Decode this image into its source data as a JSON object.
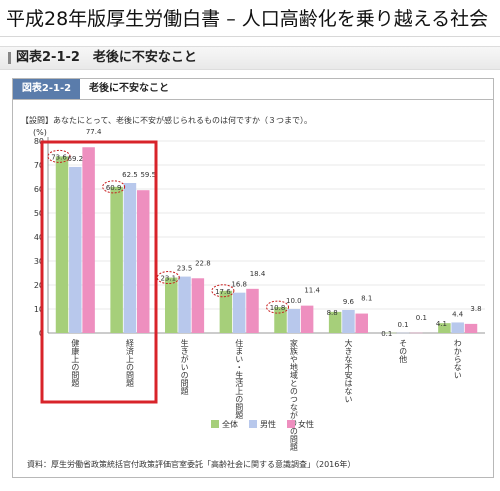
{
  "page_title": "平成28年版厚生労働白書 – 人口高齢化を乗り越える社会",
  "section_heading": "図表2-1-2　老後に不安なこと",
  "figure": {
    "badge": "図表2-1-2",
    "title": "老後に不安なこと",
    "question": "【設問】あなたにとって、老後に不安が感じられるものは何ですか（３つまで）。",
    "source": "資料：厚生労働省政策統括官付政策評価官室委託「高齢社会に関する意識調査」（2016年）"
  },
  "chart_data": {
    "type": "bar",
    "ylabel": "(%)",
    "ylim": [
      0,
      80
    ],
    "yticks": [
      "0",
      "10",
      "20",
      "30",
      "40",
      "50",
      "60",
      "70",
      "80"
    ],
    "categories": [
      "健康上の問題",
      "経済上の問題",
      "生きがいの問題",
      "住まい・生活上の問題",
      "家族や地域とのつながりの問題",
      "大きな不安はない",
      "その他",
      "わからない"
    ],
    "series": [
      {
        "name": "全体",
        "color": "#a6cf7a",
        "values": [
          73.6,
          60.9,
          23.1,
          17.6,
          10.8,
          8.8,
          0.1,
          4.1
        ],
        "labels": [
          "73.6",
          "60.9",
          "23.1",
          "17.6",
          "10.8",
          "8.8",
          "0.1",
          "4.1"
        ]
      },
      {
        "name": "男性",
        "color": "#b8c8ec",
        "values": [
          69.2,
          62.5,
          23.5,
          16.8,
          10.0,
          9.6,
          0.1,
          4.4
        ],
        "labels": [
          "69.2",
          "62.5",
          "23.5",
          "16.8",
          "10.0",
          "9.6",
          "0.1",
          "4.4"
        ]
      },
      {
        "name": "女性",
        "color": "#ee8fbf",
        "values": [
          77.4,
          59.5,
          22.8,
          18.4,
          11.4,
          8.1,
          0.1,
          3.8
        ],
        "labels": [
          "77.4",
          "59.5",
          "22.8",
          "18.4",
          "11.4",
          "8.1",
          "0.1",
          "3.8"
        ]
      }
    ],
    "legend_position": "bottom-right",
    "highlight_color": "#d8232a",
    "circle_color": "#c81e1e"
  }
}
